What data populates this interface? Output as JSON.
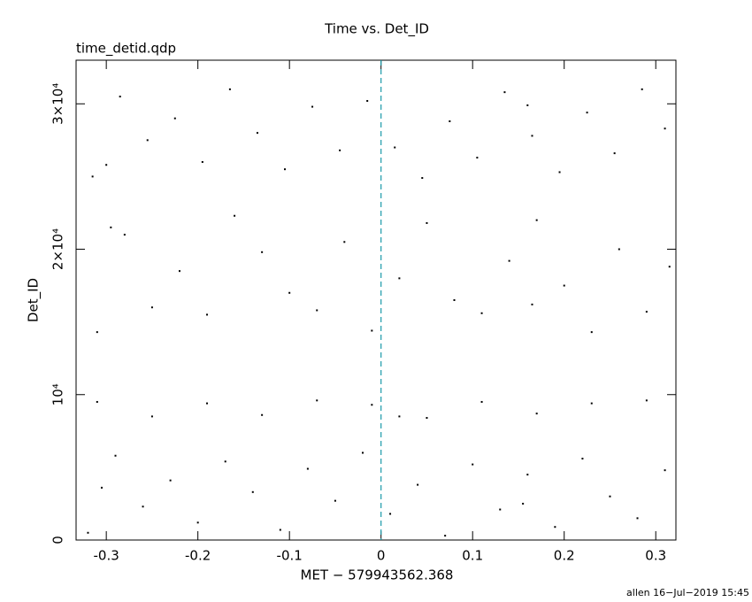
{
  "chart_data": {
    "type": "scatter",
    "title": "Time vs. Det_ID",
    "subtitle": "time_detid.qdp",
    "x_label": "MET − 579943562.368",
    "y_label": "Det_ID",
    "footer": "allen 16−Jul−2019 15:45",
    "color": "#000000",
    "vline": {
      "value": 0,
      "color": "#1a9aa8"
    },
    "xlim": [
      -0.333,
      0.322
    ],
    "ylim": [
      0,
      33000
    ],
    "xticks": [
      -0.3,
      -0.2,
      -0.1,
      0,
      0.1,
      0.2,
      0.3
    ],
    "yticks": [
      0,
      {
        "value": 10000,
        "label": "10⁴"
      },
      {
        "value": 20000,
        "label": "2×10⁴"
      },
      {
        "value": 30000,
        "label": "3×10⁴"
      }
    ],
    "x": [
      -0.32,
      -0.29,
      -0.26,
      -0.23,
      -0.2,
      -0.17,
      -0.14,
      -0.11,
      -0.08,
      -0.05,
      -0.02,
      0.01,
      0.04,
      0.07,
      0.1,
      0.13,
      0.16,
      0.19,
      0.22,
      0.25,
      0.28,
      0.31,
      -0.305,
      0.155,
      -0.31,
      -0.25,
      -0.19,
      -0.13,
      -0.07,
      -0.01,
      0.05,
      0.11,
      0.17,
      0.23,
      0.29,
      0.02,
      -0.31,
      -0.28,
      -0.25,
      -0.22,
      -0.19,
      -0.16,
      -0.13,
      -0.1,
      -0.07,
      -0.04,
      -0.01,
      0.02,
      0.05,
      0.08,
      0.11,
      0.14,
      0.17,
      0.2,
      0.23,
      0.26,
      0.29,
      0.315,
      -0.295,
      0.165,
      -0.315,
      -0.285,
      -0.255,
      -0.225,
      -0.195,
      -0.165,
      -0.135,
      -0.105,
      -0.075,
      -0.045,
      -0.015,
      0.015,
      0.045,
      0.075,
      0.105,
      0.135,
      0.165,
      0.195,
      0.225,
      0.255,
      0.285,
      0.31,
      -0.3,
      0.16
    ],
    "y": [
      500,
      5800,
      2300,
      4100,
      1200,
      5400,
      3300,
      700,
      4900,
      2700,
      6000,
      1800,
      3800,
      300,
      5200,
      2100,
      4500,
      900,
      5600,
      3000,
      1500,
      4800,
      3600,
      2500,
      9500,
      8500,
      9400,
      8600,
      9600,
      9300,
      8400,
      9500,
      8700,
      9400,
      9600,
      8500,
      14300,
      21000,
      16000,
      18500,
      15500,
      22300,
      19800,
      17000,
      15800,
      20500,
      14400,
      18000,
      21800,
      16500,
      15600,
      19200,
      22000,
      17500,
      14300,
      20000,
      15700,
      18800,
      21500,
      16200,
      25000,
      30500,
      27500,
      29000,
      26000,
      31000,
      28000,
      25500,
      29800,
      26800,
      30200,
      27000,
      24900,
      28800,
      26300,
      30800,
      27800,
      25300,
      29400,
      26600,
      31000,
      28300,
      25800,
      29900
    ]
  }
}
